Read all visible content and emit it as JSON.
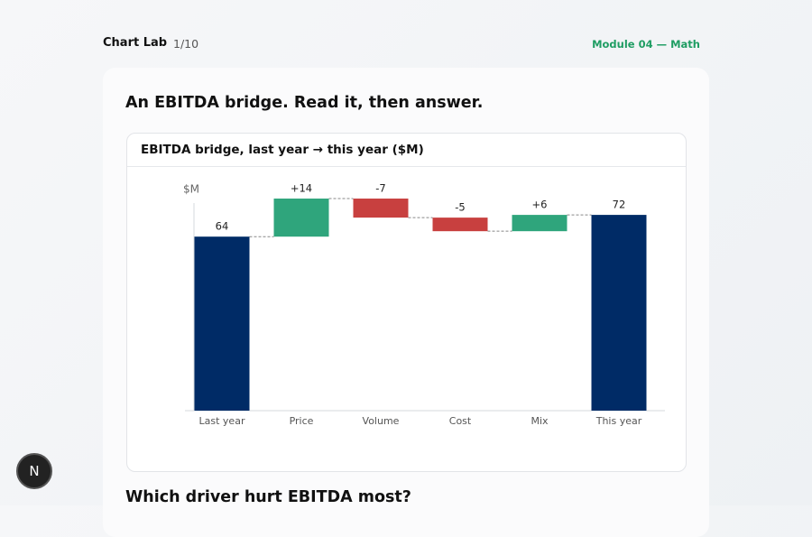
{
  "header": {
    "app": "Chart Lab",
    "progress": "1/10",
    "module": "Module 04 — Math"
  },
  "card": {
    "prompt": "An EBITDA bridge. Read it, then answer.",
    "question": "Which driver hurt EBITDA most?"
  },
  "badge": "N",
  "chart_data": {
    "type": "waterfall",
    "title": "EBITDA bridge, last year → this year ($M)",
    "y_label": "$M",
    "categories": [
      "Last year",
      "Price",
      "Volume",
      "Cost",
      "Mix",
      "This year"
    ],
    "values": [
      64,
      14,
      -7,
      -5,
      6,
      72
    ],
    "value_labels": [
      "64",
      "+14",
      "-7",
      "-5",
      "+6",
      "72"
    ],
    "total_color": "#002b66",
    "increase_color": "#2fa57c",
    "decrease_color": "#c8403f",
    "ylim": [
      0,
      80
    ]
  }
}
